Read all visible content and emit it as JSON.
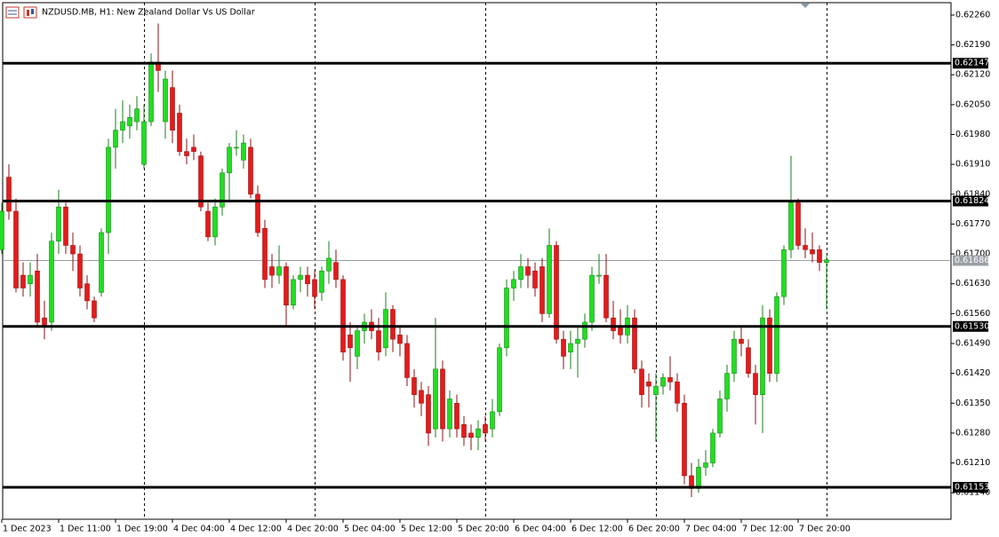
{
  "chart_data": {
    "type": "candlestick",
    "title": "NZDUSD.MB, H1:  New Zealand Dollar Vs US Dollar",
    "up_color": "#22dd22",
    "down_color": "#e41b1b",
    "categories": [
      "1 Dec 2023",
      null,
      null,
      null,
      null,
      null,
      null,
      null,
      "1 Dec 11:00",
      null,
      null,
      null,
      null,
      null,
      null,
      null,
      "1 Dec 19:00",
      null,
      null,
      null,
      null,
      null,
      null,
      null,
      "4 Dec 04:00",
      null,
      null,
      null,
      null,
      null,
      null,
      null,
      "4 Dec 12:00",
      null,
      null,
      null,
      null,
      null,
      null,
      null,
      "4 Dec 20:00",
      null,
      null,
      null,
      null,
      null,
      null,
      null,
      "5 Dec 04:00",
      null,
      null,
      null,
      null,
      null,
      null,
      null,
      "5 Dec 12:00",
      null,
      null,
      null,
      null,
      null,
      null,
      null,
      "5 Dec 20:00",
      null,
      null,
      null,
      null,
      null,
      null,
      null,
      "6 Dec 04:00",
      null,
      null,
      null,
      null,
      null,
      null,
      null,
      "6 Dec 12:00",
      null,
      null,
      null,
      null,
      null,
      null,
      null,
      "6 Dec 20:00",
      null,
      null,
      null,
      null,
      null,
      null,
      null,
      "7 Dec 04:00",
      null,
      null,
      null,
      null,
      null,
      null,
      null,
      "7 Dec 12:00",
      null,
      null,
      null,
      null,
      null,
      null,
      null,
      "7 Dec 20:00",
      null,
      null,
      null,
      null
    ],
    "open": [
      0.6171,
      0.6188,
      0.618,
      0.6165,
      0.6163,
      0.6166,
      0.6155,
      0.6154,
      0.6173,
      0.6181,
      0.6172,
      0.617,
      0.6163,
      0.6159,
      0.6161,
      0.6175,
      0.6195,
      0.6199,
      0.62,
      0.6201,
      0.6191,
      0.6201,
      0.6215,
      0.6201,
      0.6209,
      0.6203,
      0.6194,
      0.6195,
      0.6193,
      0.618,
      0.6174,
      0.6181,
      0.6189,
      0.6195,
      0.6192,
      0.6195,
      0.6184,
      0.6176,
      0.6167,
      0.6165,
      0.6167,
      0.6158,
      0.6164,
      0.6165,
      0.6164,
      0.6161,
      0.6166,
      0.6168,
      0.6164,
      0.6151,
      0.6146,
      0.6152,
      0.6154,
      0.6152,
      0.6148,
      0.6157,
      0.6151,
      0.6149,
      0.6141,
      0.6138,
      0.6137,
      0.6129,
      0.6143,
      0.6129,
      0.6135,
      0.613,
      0.6128,
      0.6127,
      0.613,
      0.6129,
      0.6133,
      0.6148,
      0.6162,
      0.6164,
      0.6167,
      0.6166,
      0.6167,
      0.6156,
      0.6172,
      0.615,
      0.6147,
      0.6149,
      0.615,
      0.6154,
      0.6165,
      0.6165,
      0.6155,
      0.6153,
      0.6151,
      0.6155,
      0.6143,
      0.614,
      0.6137,
      0.6139,
      0.6141,
      0.614,
      0.6135,
      0.6118,
      0.6115,
      0.612,
      0.6121,
      0.6128,
      0.6136,
      0.6142,
      0.615,
      0.6148,
      0.6142,
      0.6137,
      0.6155,
      0.6142,
      0.616,
      0.6171,
      0.6182,
      0.6172,
      0.6171,
      0.6171,
      0.6168
    ],
    "high": [
      0.6182,
      0.6191,
      0.6183,
      0.6168,
      0.6168,
      0.617,
      0.6159,
      0.6175,
      0.6185,
      0.6182,
      0.6175,
      0.6172,
      0.6165,
      0.616,
      0.6176,
      0.6197,
      0.6204,
      0.6206,
      0.6205,
      0.6207,
      0.6205,
      0.6217,
      0.6224,
      0.6213,
      0.6213,
      0.6205,
      0.6197,
      0.6198,
      0.6194,
      0.6182,
      0.6183,
      0.619,
      0.6196,
      0.6199,
      0.6198,
      0.6197,
      0.6186,
      0.6178,
      0.617,
      0.6172,
      0.6168,
      0.6165,
      0.6167,
      0.6167,
      0.6166,
      0.6167,
      0.6173,
      0.6171,
      0.6165,
      0.6154,
      0.6153,
      0.6156,
      0.6157,
      0.6155,
      0.6161,
      0.6158,
      0.6153,
      0.6151,
      0.6143,
      0.614,
      0.6139,
      0.6155,
      0.6145,
      0.6138,
      0.6137,
      0.6132,
      0.613,
      0.6131,
      0.6132,
      0.6136,
      0.6149,
      0.6164,
      0.6166,
      0.617,
      0.6169,
      0.6168,
      0.6169,
      0.6176,
      0.6173,
      0.6152,
      0.6152,
      0.6153,
      0.6156,
      0.6167,
      0.617,
      0.617,
      0.6159,
      0.6157,
      0.6158,
      0.6157,
      0.6145,
      0.6142,
      0.6142,
      0.6142,
      0.6146,
      0.6142,
      0.6137,
      0.6121,
      0.6122,
      0.6124,
      0.6129,
      0.6138,
      0.6144,
      0.6152,
      0.6153,
      0.615,
      0.6144,
      0.6158,
      0.6157,
      0.6161,
      0.6172,
      0.6193,
      0.6183,
      0.6176,
      0.6175,
      0.6172,
      0.61695
    ],
    "low": [
      0.617,
      0.6178,
      0.6161,
      0.616,
      0.616,
      0.6153,
      0.615,
      0.6152,
      0.617,
      0.617,
      0.6166,
      0.616,
      0.6157,
      0.6154,
      0.616,
      0.617,
      0.619,
      0.6196,
      0.6197,
      0.6199,
      0.619,
      0.62,
      0.6208,
      0.6197,
      0.6196,
      0.6193,
      0.6191,
      0.6192,
      0.618,
      0.6173,
      0.6172,
      0.6179,
      0.6182,
      0.6193,
      0.619,
      0.6183,
      0.6174,
      0.6162,
      0.6162,
      0.6163,
      0.6153,
      0.6157,
      0.6161,
      0.616,
      0.6157,
      0.6159,
      0.6163,
      0.6162,
      0.6145,
      0.614,
      0.6143,
      0.6149,
      0.615,
      0.6145,
      0.6146,
      0.6147,
      0.6146,
      0.6139,
      0.6134,
      0.6132,
      0.6125,
      0.6127,
      0.6126,
      0.6127,
      0.6127,
      0.6125,
      0.6124,
      0.6124,
      0.6126,
      0.6127,
      0.6132,
      0.6146,
      0.6159,
      0.6162,
      0.6162,
      0.616,
      0.6154,
      0.6155,
      0.6149,
      0.6143,
      0.6143,
      0.6141,
      0.6148,
      0.6152,
      0.6163,
      0.6154,
      0.615,
      0.6149,
      0.6149,
      0.6142,
      0.6134,
      0.6134,
      0.6126,
      0.6137,
      0.6138,
      0.6133,
      0.6116,
      0.6113,
      0.6114,
      0.6118,
      0.612,
      0.6127,
      0.6133,
      0.614,
      0.6146,
      0.6141,
      0.613,
      0.6128,
      0.614,
      0.614,
      0.6158,
      0.6169,
      0.6171,
      0.6169,
      0.6168,
      0.6166,
      0.6157
    ],
    "close": [
      0.618,
      0.618,
      0.6162,
      0.6162,
      0.6165,
      0.6154,
      0.6153,
      0.6173,
      0.6181,
      0.6172,
      0.617,
      0.6162,
      0.6159,
      0.6155,
      0.6175,
      0.6195,
      0.6199,
      0.6201,
      0.6202,
      0.6204,
      0.6201,
      0.6215,
      0.6213,
      0.6211,
      0.6199,
      0.6194,
      0.6193,
      0.6194,
      0.6181,
      0.6174,
      0.6181,
      0.6189,
      0.6195,
      0.6195,
      0.6196,
      0.6184,
      0.6175,
      0.6164,
      0.6165,
      0.6167,
      0.6158,
      0.6164,
      0.6165,
      0.6163,
      0.616,
      0.6166,
      0.6169,
      0.6164,
      0.6147,
      0.6148,
      0.6152,
      0.6154,
      0.6152,
      0.6147,
      0.6157,
      0.615,
      0.6149,
      0.6141,
      0.6137,
      0.6135,
      0.6128,
      0.6143,
      0.6129,
      0.6136,
      0.6129,
      0.6127,
      0.6127,
      0.6129,
      0.6128,
      0.6133,
      0.6148,
      0.6162,
      0.6164,
      0.6167,
      0.6165,
      0.6162,
      0.6156,
      0.6172,
      0.615,
      0.6146,
      0.6149,
      0.615,
      0.6154,
      0.6165,
      0.6165,
      0.6155,
      0.6152,
      0.6151,
      0.6155,
      0.6143,
      0.6137,
      0.6139,
      0.6139,
      0.6141,
      0.614,
      0.6135,
      0.6118,
      0.6115,
      0.612,
      0.6121,
      0.6128,
      0.6136,
      0.6142,
      0.615,
      0.6149,
      0.6142,
      0.6137,
      0.6155,
      0.6142,
      0.616,
      0.6171,
      0.6182,
      0.6172,
      0.6171,
      0.617,
      0.6168,
      0.61686
    ],
    "ylim": [
      0.61078,
      0.62289
    ],
    "yticks": [
      {
        "value": 0.6226,
        "label": "0.62260"
      },
      {
        "value": 0.6219,
        "label": "0.62190"
      },
      {
        "value": 0.6212,
        "label": "0.62120"
      },
      {
        "value": 0.6205,
        "label": "0.62050"
      },
      {
        "value": 0.6198,
        "label": "0.61980"
      },
      {
        "value": 0.6191,
        "label": "0.61910"
      },
      {
        "value": 0.6184,
        "label": "0.61840"
      },
      {
        "value": 0.6177,
        "label": "0.61770"
      },
      {
        "value": 0.617,
        "label": "0.61700"
      },
      {
        "value": 0.6163,
        "label": "0.61630"
      },
      {
        "value": 0.6156,
        "label": "0.61560"
      },
      {
        "value": 0.6149,
        "label": "0.61490"
      },
      {
        "value": 0.6142,
        "label": "0.61420"
      },
      {
        "value": 0.6135,
        "label": "0.61350"
      },
      {
        "value": 0.6128,
        "label": "0.61280"
      },
      {
        "value": 0.6121,
        "label": "0.61210"
      },
      {
        "value": 0.6114,
        "label": "0.61140"
      }
    ],
    "levels": [
      {
        "value": 0.62147,
        "label": "0.62147"
      },
      {
        "value": 0.61824,
        "label": "0.61824"
      },
      {
        "value": 0.6153,
        "label": "0.61530"
      },
      {
        "value": 0.61153,
        "label": "0.61153"
      }
    ],
    "current_price": {
      "value": 0.61686,
      "label": "0.61686"
    }
  }
}
